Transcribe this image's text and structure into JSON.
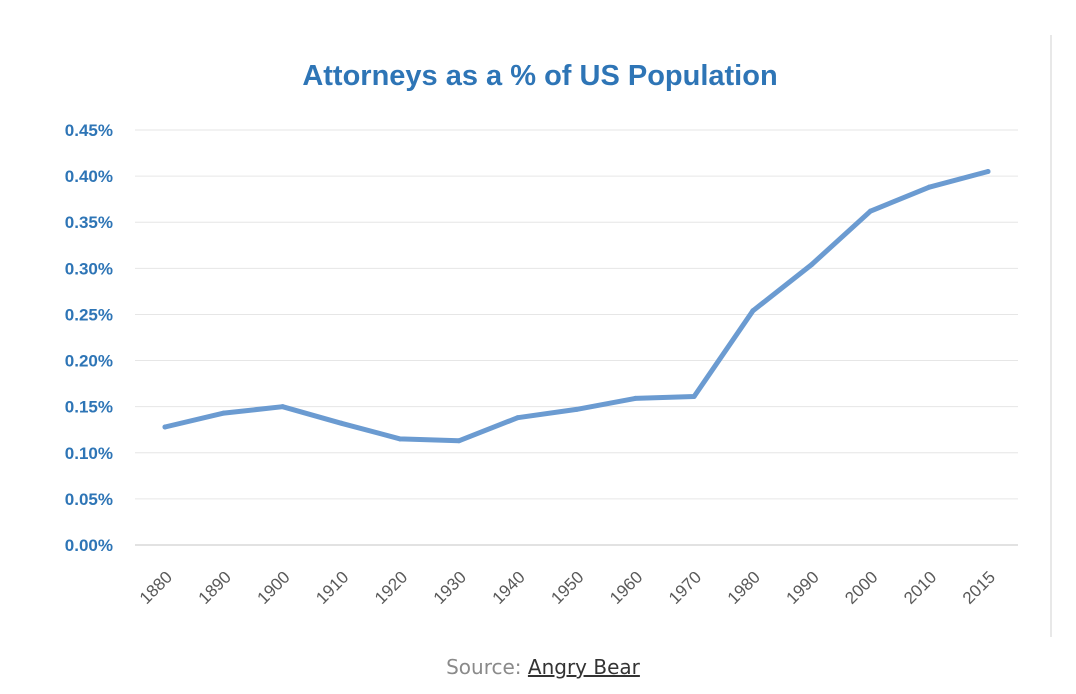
{
  "colors": {
    "title": "#2e75b6",
    "ytick": "#2e75b6",
    "xtick": "#595959",
    "line": "#6b9bd1",
    "grid": "#e6e6e6",
    "axis": "#d9d9d9"
  },
  "chart_data": {
    "type": "line",
    "title": "Attorneys as a % of US Population",
    "xlabel": "",
    "ylabel": "",
    "categories": [
      "1880",
      "1890",
      "1900",
      "1910",
      "1920",
      "1930",
      "1940",
      "1950",
      "1960",
      "1970",
      "1980",
      "1990",
      "2000",
      "2010",
      "2015"
    ],
    "series": [
      {
        "values": [
          0.128,
          0.143,
          0.15,
          0.132,
          0.115,
          0.113,
          0.138,
          0.147,
          0.159,
          0.161,
          0.254,
          0.304,
          0.362,
          0.388,
          0.405
        ]
      }
    ],
    "ylim": [
      0,
      0.45
    ],
    "yticks": [
      0,
      0.05,
      0.1,
      0.15,
      0.2,
      0.25,
      0.3,
      0.35,
      0.4,
      0.45
    ],
    "ytick_labels": [
      "0.00%",
      "0.05%",
      "0.10%",
      "0.15%",
      "0.20%",
      "0.25%",
      "0.30%",
      "0.35%",
      "0.40%",
      "0.45%"
    ],
    "grid": true,
    "legend": "none"
  },
  "source": {
    "prefix": "Source: ",
    "link_text": "Angry Bear"
  }
}
